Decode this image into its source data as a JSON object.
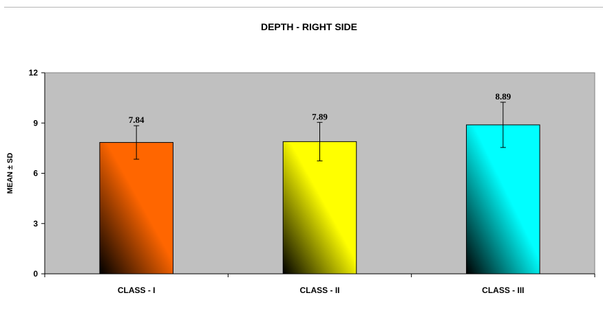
{
  "chart_data": {
    "type": "bar",
    "title": "DEPTH - RIGHT SIDE",
    "xlabel": "",
    "ylabel": "MEAN ± SD",
    "categories": [
      "CLASS - I",
      "CLASS - II",
      "CLASS - III"
    ],
    "values": [
      7.84,
      7.89,
      8.89
    ],
    "data_labels": [
      "7.84",
      "7.89",
      "8.89"
    ],
    "error_bars": [
      1.0,
      1.15,
      1.35
    ],
    "ylim": [
      0,
      12
    ],
    "yticks": [
      0,
      3,
      6,
      9,
      12
    ],
    "grid": false,
    "legend": "none",
    "colors": {
      "plot_background": "#c0c0c0",
      "bar_fills": [
        "#ff6600",
        "#ffff00",
        "#00ffff"
      ],
      "bar_shade": "#000000",
      "outline": "#000000"
    }
  }
}
